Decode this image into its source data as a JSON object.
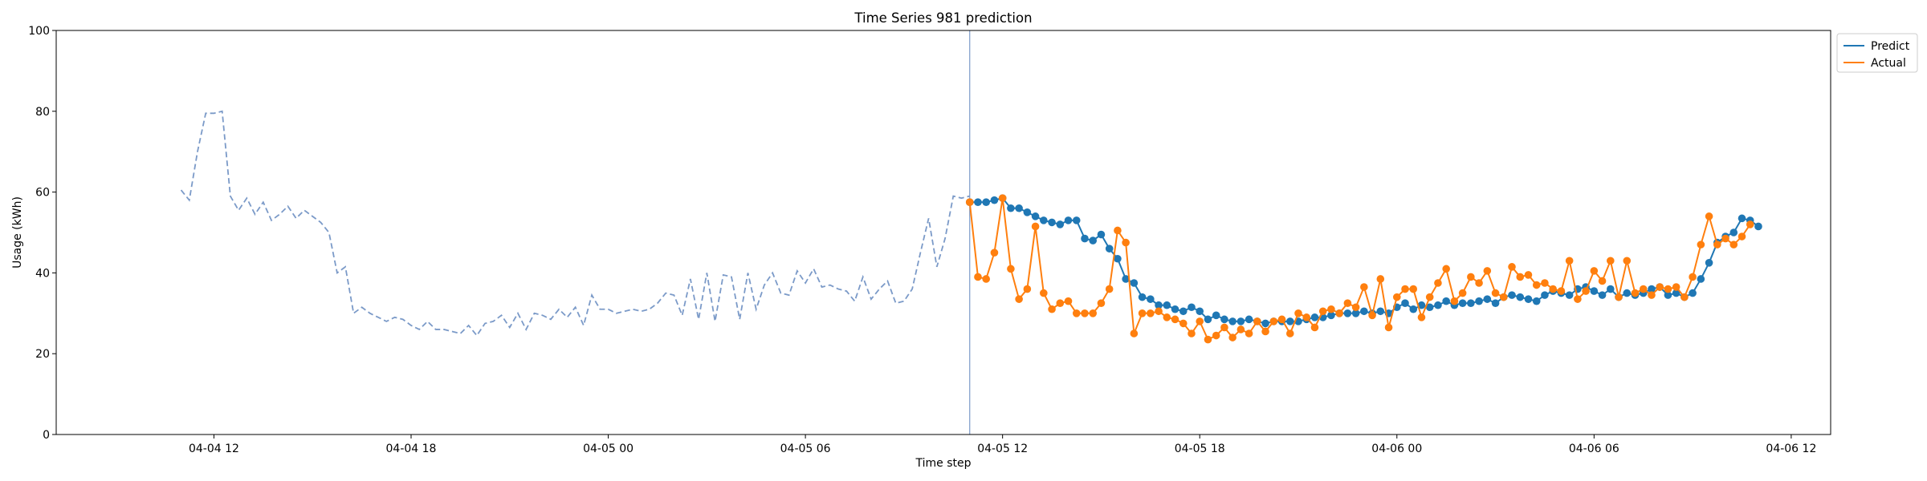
{
  "chart_data": {
    "type": "line",
    "title": "Time Series 981 prediction",
    "xlabel": "Time step",
    "ylabel": "Usage (kWh)",
    "ylim": [
      0,
      100
    ],
    "y_ticks": [
      "0",
      "20",
      "40",
      "60",
      "80",
      "100"
    ],
    "x_range": [
      "2021-04-04T07:12",
      "2021-04-06T13:12"
    ],
    "x_ticks": [
      {
        "t": "2021-04-04T12:00",
        "label": "04-04 12"
      },
      {
        "t": "2021-04-04T18:00",
        "label": "04-04 18"
      },
      {
        "t": "2021-04-05T00:00",
        "label": "04-05 00"
      },
      {
        "t": "2021-04-05T06:00",
        "label": "04-05 06"
      },
      {
        "t": "2021-04-05T12:00",
        "label": "04-05 12"
      },
      {
        "t": "2021-04-05T18:00",
        "label": "04-05 18"
      },
      {
        "t": "2021-04-06T00:00",
        "label": "04-06 00"
      },
      {
        "t": "2021-04-06T06:00",
        "label": "04-06 06"
      },
      {
        "t": "2021-04-06T12:00",
        "label": "04-06 12"
      }
    ],
    "grid": false,
    "legend_position": "upper-right-outside",
    "forecast_start": "2021-04-05T11:00",
    "history": {
      "color": "#7b9ac8",
      "style": "dashed",
      "start": "2021-04-04T11:00",
      "step_minutes": 15,
      "values": [
        60.5,
        58,
        70,
        79.5,
        79.5,
        80,
        59,
        55.5,
        58.5,
        54.5,
        57.5,
        53,
        54.5,
        56.5,
        53.5,
        55.5,
        54,
        52.5,
        50,
        40,
        41.5,
        30,
        31.5,
        30,
        29,
        28,
        29,
        28.5,
        27,
        26,
        28,
        26,
        26,
        25.5,
        25,
        27,
        24.5,
        27.5,
        28,
        29.5,
        26.5,
        30,
        26,
        30,
        29.5,
        28.5,
        31,
        29,
        31.5,
        27,
        34.5,
        31,
        31,
        30,
        30.5,
        31,
        30.5,
        31,
        32.5,
        35,
        34.5,
        29.5,
        38.5,
        28.5,
        40,
        28,
        39.5,
        39,
        28.5,
        40,
        31,
        37,
        40,
        35,
        34.5,
        40.5,
        37.5,
        41,
        36.5,
        37,
        36,
        35.5,
        33,
        39,
        33.5,
        36,
        38,
        32.5,
        33,
        36,
        45,
        53.5,
        41.5,
        48.5,
        59,
        58.5,
        59
      ]
    },
    "series": [
      {
        "name": "Predict",
        "color": "#1f77b4",
        "start": "2021-04-05T11:00",
        "step_minutes": 15,
        "values": [
          57.5,
          57.5,
          57.5,
          58,
          58.5,
          56,
          56,
          55,
          54,
          53,
          52.5,
          52,
          53,
          53,
          48.5,
          48,
          49.5,
          46,
          43.5,
          38.5,
          37.5,
          34,
          33.5,
          32,
          32,
          31,
          30.5,
          31.5,
          30.5,
          28.5,
          29.5,
          28.5,
          28,
          28,
          28.5,
          28,
          27.5,
          28,
          28,
          28,
          28,
          28.5,
          29,
          29,
          29.5,
          30,
          30,
          30,
          30.5,
          30,
          30.5,
          30,
          31.5,
          32.5,
          31,
          32,
          31.5,
          32,
          33,
          32,
          32.5,
          32.5,
          33,
          33.5,
          32.5,
          34,
          34.5,
          34,
          33.5,
          33,
          34.5,
          35.5,
          35,
          34.5,
          36,
          36.5,
          35.5,
          34.5,
          36,
          34,
          35,
          34.5,
          35,
          36,
          36.5,
          34.5,
          35,
          34,
          35,
          38.5,
          42.5,
          47.5,
          49,
          50,
          53.5,
          53,
          51.5
        ]
      },
      {
        "name": "Actual",
        "color": "#ff7f0e",
        "start": "2021-04-05T11:00",
        "step_minutes": 15,
        "values": [
          57.5,
          39,
          38.5,
          45,
          58.5,
          41,
          33.5,
          36,
          51.5,
          35,
          31,
          32.5,
          33,
          30,
          30,
          30,
          32.5,
          36,
          50.5,
          47.5,
          25,
          30,
          30,
          30.5,
          29,
          28.5,
          27.5,
          25,
          28,
          23.5,
          24.5,
          26.5,
          24,
          26,
          25,
          28,
          25.5,
          28,
          28.5,
          25,
          30,
          29,
          26.5,
          30.5,
          31,
          30,
          32.5,
          31.5,
          36.5,
          29.5,
          38.5,
          26.5,
          34,
          36,
          36,
          29,
          34,
          37.5,
          41,
          33,
          35,
          39,
          37.5,
          40.5,
          35,
          34,
          41.5,
          39,
          39.5,
          37,
          37.5,
          36,
          35.5,
          43,
          33.5,
          35.5,
          40.5,
          38,
          43,
          34,
          43,
          35,
          36,
          34.5,
          36.5,
          36,
          36.5,
          34,
          39,
          47,
          54,
          47,
          48.5,
          47,
          49,
          52
        ]
      }
    ]
  }
}
